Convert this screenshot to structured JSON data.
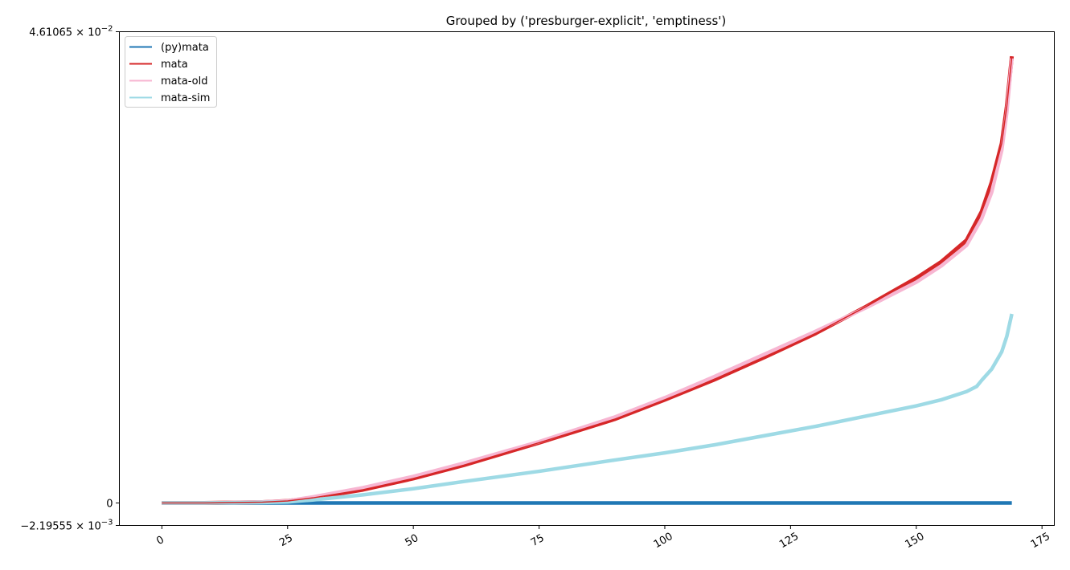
{
  "chart_data": {
    "type": "line",
    "title": "Grouped by ('presburger-explicit', 'emptiness')",
    "xlabel": "",
    "ylabel": "",
    "xlim": [
      -8.45,
      177.45
    ],
    "ylim": [
      -0.00219555,
      0.0461065
    ],
    "x_ticks": [
      0,
      25,
      50,
      75,
      100,
      125,
      150,
      175
    ],
    "y_ticks": [
      {
        "value": 0.0461065,
        "mantissa": "4.61065",
        "exponent": "−2"
      },
      {
        "value": 0.0,
        "mantissa": "0",
        "exponent": ""
      },
      {
        "value": -0.00219555,
        "mantissa": "−2.19555",
        "exponent": "−3"
      }
    ],
    "grid": false,
    "legend_position": "top-left",
    "series": [
      {
        "name": "(py)mata",
        "color": "#1f77b4",
        "x": [
          0,
          25,
          50,
          75,
          100,
          125,
          150,
          169
        ],
        "y": [
          0,
          0,
          0,
          0,
          0,
          0,
          0,
          0
        ]
      },
      {
        "name": "mata",
        "color": "#d62728",
        "x": [
          0,
          10,
          20,
          25,
          30,
          40,
          50,
          60,
          75,
          90,
          100,
          110,
          120,
          130,
          140,
          150,
          155,
          160,
          163,
          165,
          167,
          168,
          169
        ],
        "y": [
          0,
          1e-05,
          8e-05,
          0.0002,
          0.0005,
          0.0013,
          0.0024,
          0.0037,
          0.0059,
          0.0082,
          0.0101,
          0.0121,
          0.0143,
          0.0166,
          0.0192,
          0.022,
          0.0236,
          0.0257,
          0.0285,
          0.0314,
          0.0352,
          0.0388,
          0.0437
        ]
      },
      {
        "name": "mata-old",
        "color": "#f7b6d2",
        "x": [
          0,
          10,
          20,
          25,
          30,
          40,
          50,
          60,
          75,
          90,
          100,
          110,
          120,
          130,
          140,
          150,
          155,
          160,
          163,
          165,
          167,
          168,
          169
        ],
        "y": [
          0,
          1e-05,
          0.0001,
          0.0002,
          0.0006,
          0.0015,
          0.0026,
          0.0039,
          0.006,
          0.0084,
          0.0103,
          0.0124,
          0.0146,
          0.0168,
          0.0191,
          0.0216,
          0.0232,
          0.0252,
          0.0278,
          0.0304,
          0.0345,
          0.0382,
          0.0435
        ]
      },
      {
        "name": "mata-sim",
        "color": "#9edae5",
        "x": [
          0,
          10,
          20,
          25,
          30,
          40,
          50,
          60,
          75,
          90,
          100,
          110,
          120,
          130,
          140,
          150,
          155,
          160,
          162,
          163,
          165,
          167,
          168,
          169
        ],
        "y": [
          0,
          1e-05,
          5e-05,
          0.0001,
          0.0003,
          0.0008,
          0.0014,
          0.0021,
          0.0031,
          0.0042,
          0.0049,
          0.0057,
          0.0066,
          0.0075,
          0.0085,
          0.0095,
          0.0101,
          0.0109,
          0.0114,
          0.012,
          0.0131,
          0.0148,
          0.0163,
          0.0185
        ]
      }
    ]
  }
}
